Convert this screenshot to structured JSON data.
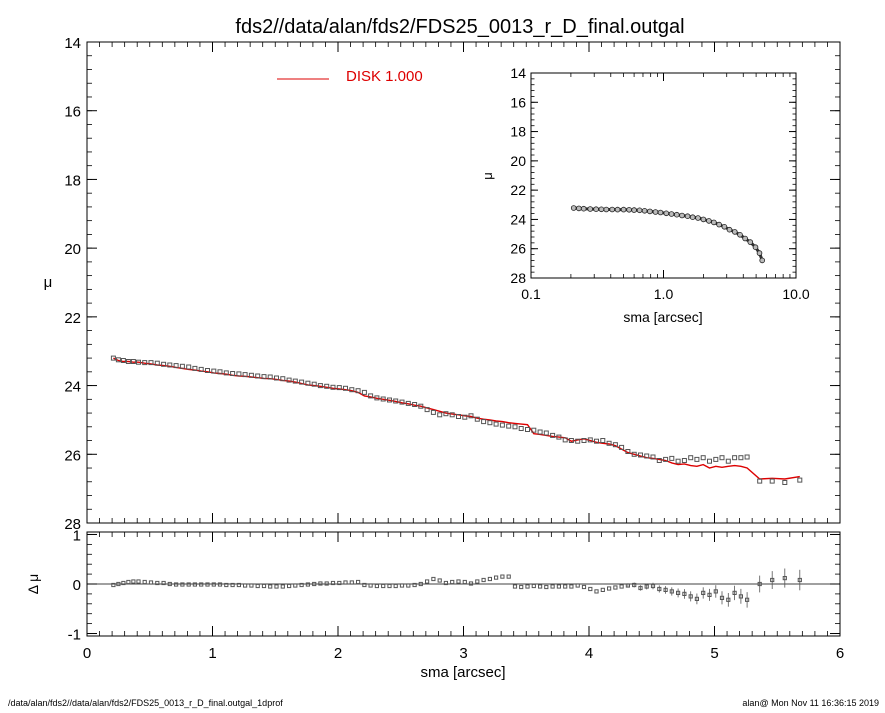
{
  "title": "fds2//data/alan/fds2/FDS25_0013_r_D_final.outgal",
  "footer": {
    "left": "/data/alan/fds2//data/alan/fds2/FDS25_0013_r_D_final.outgal_1dprof",
    "right": "alan@  Mon Nov 11 16:36:15 2019"
  },
  "legend": {
    "label": "DISK  1.000",
    "color": "#dd0000"
  },
  "colors": {
    "model": "#dd0000",
    "points": "#555555",
    "axis": "#000000"
  },
  "chart_data": [
    {
      "id": "main",
      "type": "scatter",
      "ylabel": "μ",
      "xlim": [
        0,
        6
      ],
      "ylim": [
        28,
        14
      ],
      "yticks": [
        14,
        16,
        18,
        20,
        22,
        24,
        26,
        28
      ],
      "x": [
        0.21,
        0.25,
        0.29,
        0.33,
        0.37,
        0.41,
        0.46,
        0.51,
        0.56,
        0.61,
        0.66,
        0.71,
        0.76,
        0.81,
        0.86,
        0.91,
        0.96,
        1.01,
        1.06,
        1.11,
        1.16,
        1.21,
        1.26,
        1.31,
        1.36,
        1.41,
        1.46,
        1.51,
        1.56,
        1.61,
        1.66,
        1.71,
        1.76,
        1.81,
        1.86,
        1.91,
        1.96,
        2.01,
        2.06,
        2.11,
        2.16,
        2.21,
        2.26,
        2.31,
        2.36,
        2.41,
        2.46,
        2.51,
        2.56,
        2.61,
        2.66,
        2.71,
        2.76,
        2.81,
        2.86,
        2.91,
        2.96,
        3.01,
        3.06,
        3.11,
        3.16,
        3.21,
        3.26,
        3.31,
        3.36,
        3.41,
        3.46,
        3.51,
        3.56,
        3.61,
        3.66,
        3.71,
        3.76,
        3.81,
        3.86,
        3.91,
        3.96,
        4.01,
        4.06,
        4.11,
        4.16,
        4.21,
        4.26,
        4.31,
        4.36,
        4.41,
        4.46,
        4.51,
        4.56,
        4.61,
        4.66,
        4.71,
        4.76,
        4.81,
        4.86,
        4.91,
        4.96,
        5.01,
        5.06,
        5.11,
        5.16,
        5.21,
        5.26,
        5.36,
        5.46,
        5.56,
        5.68
      ],
      "y": [
        23.2,
        23.25,
        23.27,
        23.3,
        23.3,
        23.32,
        23.33,
        23.33,
        23.35,
        23.38,
        23.4,
        23.42,
        23.44,
        23.46,
        23.5,
        23.53,
        23.56,
        23.58,
        23.6,
        23.63,
        23.65,
        23.66,
        23.68,
        23.7,
        23.72,
        23.74,
        23.75,
        23.78,
        23.8,
        23.84,
        23.87,
        23.9,
        23.93,
        23.96,
        24.0,
        24.02,
        24.05,
        24.06,
        24.08,
        24.12,
        24.15,
        24.2,
        24.3,
        24.36,
        24.39,
        24.42,
        24.45,
        24.48,
        24.52,
        24.55,
        24.6,
        24.7,
        24.78,
        24.85,
        24.82,
        24.85,
        24.9,
        24.92,
        24.88,
        24.98,
        25.05,
        25.08,
        25.12,
        25.15,
        25.18,
        25.2,
        25.25,
        25.28,
        25.3,
        25.35,
        25.38,
        25.45,
        25.5,
        25.58,
        25.6,
        25.62,
        25.6,
        25.58,
        25.62,
        25.6,
        25.68,
        25.72,
        25.8,
        25.92,
        26.0,
        26.02,
        26.05,
        26.08,
        26.18,
        26.15,
        26.12,
        26.2,
        26.18,
        26.1,
        26.15,
        26.1,
        26.2,
        26.15,
        26.1,
        26.2,
        26.1,
        26.1,
        26.08,
        26.78,
        26.78,
        26.82,
        26.75
      ],
      "model": [
        23.2,
        23.27,
        23.3,
        23.3,
        23.32,
        23.32,
        23.35,
        23.37,
        23.4,
        23.42,
        23.44,
        23.47,
        23.5,
        23.53,
        23.55,
        23.58,
        23.6,
        23.63,
        23.65,
        23.67,
        23.7,
        23.72,
        23.73,
        23.75,
        23.77,
        23.79,
        23.8,
        23.82,
        23.85,
        23.87,
        23.9,
        23.94,
        23.98,
        24.0,
        24.02,
        24.05,
        24.08,
        24.1,
        24.12,
        24.15,
        24.2,
        24.3,
        24.33,
        24.37,
        24.4,
        24.43,
        24.46,
        24.5,
        24.53,
        24.57,
        24.6,
        24.65,
        24.7,
        24.75,
        24.8,
        24.83,
        24.85,
        24.88,
        24.9,
        24.95,
        24.98,
        25.0,
        25.03,
        25.05,
        25.08,
        25.1,
        25.12,
        25.14,
        25.4,
        25.42,
        25.45,
        25.48,
        25.5,
        25.52,
        25.62,
        25.58,
        25.55,
        25.6,
        25.65,
        25.68,
        25.7,
        25.75,
        25.85,
        25.95,
        26.0,
        26.05,
        26.1,
        26.12,
        26.15,
        26.18,
        26.25,
        26.3,
        26.28,
        26.33,
        26.35,
        26.3,
        26.4,
        26.35,
        26.38,
        26.35,
        26.33,
        26.35,
        26.4,
        26.72,
        26.7,
        26.72,
        26.65
      ]
    },
    {
      "id": "residual",
      "type": "scatter",
      "xlabel": "sma [arcsec]",
      "ylabel": "Δ μ",
      "xlim": [
        0,
        6
      ],
      "ylim": [
        -1.05,
        1.05
      ],
      "xticks": [
        0,
        1,
        2,
        3,
        4,
        5,
        6
      ],
      "yticks": [
        1,
        0,
        -1
      ],
      "x": [
        0.21,
        0.25,
        0.29,
        0.33,
        0.37,
        0.41,
        0.46,
        0.51,
        0.56,
        0.61,
        0.66,
        0.71,
        0.76,
        0.81,
        0.86,
        0.91,
        0.96,
        1.01,
        1.06,
        1.11,
        1.16,
        1.21,
        1.26,
        1.31,
        1.36,
        1.41,
        1.46,
        1.51,
        1.56,
        1.61,
        1.66,
        1.71,
        1.76,
        1.81,
        1.86,
        1.91,
        1.96,
        2.01,
        2.06,
        2.11,
        2.16,
        2.21,
        2.26,
        2.31,
        2.36,
        2.41,
        2.46,
        2.51,
        2.56,
        2.61,
        2.66,
        2.71,
        2.76,
        2.81,
        2.86,
        2.91,
        2.96,
        3.01,
        3.06,
        3.11,
        3.16,
        3.21,
        3.26,
        3.31,
        3.36,
        3.41,
        3.46,
        3.51,
        3.56,
        3.61,
        3.66,
        3.71,
        3.76,
        3.81,
        3.86,
        3.91,
        3.96,
        4.01,
        4.06,
        4.11,
        4.16,
        4.21,
        4.26,
        4.31,
        4.36,
        4.41,
        4.46,
        4.51,
        4.56,
        4.61,
        4.66,
        4.71,
        4.76,
        4.81,
        4.86,
        4.91,
        4.96,
        5.01,
        5.06,
        5.11,
        5.16,
        5.21,
        5.26,
        5.36,
        5.46,
        5.56,
        5.68
      ],
      "y": [
        -0.02,
        0.0,
        0.02,
        0.04,
        0.05,
        0.05,
        0.04,
        0.03,
        0.02,
        0.02,
        0.0,
        -0.01,
        -0.01,
        -0.01,
        -0.01,
        -0.01,
        -0.01,
        -0.01,
        -0.01,
        -0.02,
        -0.02,
        -0.02,
        -0.03,
        -0.03,
        -0.04,
        -0.04,
        -0.05,
        -0.05,
        -0.05,
        -0.04,
        -0.03,
        -0.02,
        -0.01,
        0.0,
        0.01,
        0.01,
        0.02,
        0.02,
        0.03,
        0.03,
        0.04,
        -0.02,
        -0.03,
        -0.04,
        -0.04,
        -0.04,
        -0.04,
        -0.03,
        -0.03,
        -0.02,
        0.0,
        0.05,
        0.1,
        0.07,
        0.02,
        0.04,
        0.05,
        0.04,
        0.01,
        0.05,
        0.08,
        0.1,
        0.13,
        0.15,
        0.15,
        -0.05,
        -0.06,
        -0.05,
        -0.04,
        -0.05,
        -0.06,
        -0.05,
        -0.05,
        -0.05,
        -0.05,
        -0.03,
        -0.06,
        -0.1,
        -0.15,
        -0.12,
        -0.09,
        -0.07,
        -0.05,
        -0.03,
        -0.02,
        -0.08,
        -0.05,
        -0.04,
        -0.1,
        -0.12,
        -0.15,
        -0.18,
        -0.2,
        -0.25,
        -0.3,
        -0.18,
        -0.22,
        -0.15,
        -0.28,
        -0.32,
        -0.18,
        -0.25,
        -0.32,
        -0.0,
        0.08,
        0.12,
        0.08
      ]
    },
    {
      "id": "inset",
      "type": "scatter",
      "xscale": "log",
      "xlabel": "sma [arcsec]",
      "ylabel": "μ",
      "xlim": [
        0.1,
        10
      ],
      "ylim": [
        28,
        14
      ],
      "xticks": [
        0.1,
        1.0,
        10.0
      ],
      "xticklabels": [
        "0.1",
        "1.0",
        "10.0"
      ],
      "yticks": [
        14,
        16,
        18,
        20,
        22,
        24,
        26,
        28
      ],
      "x": [
        0.21,
        0.23,
        0.25,
        0.28,
        0.31,
        0.34,
        0.37,
        0.41,
        0.45,
        0.5,
        0.55,
        0.6,
        0.66,
        0.72,
        0.79,
        0.87,
        0.95,
        1.05,
        1.15,
        1.26,
        1.38,
        1.52,
        1.66,
        1.82,
        2.0,
        2.2,
        2.4,
        2.63,
        2.88,
        3.15,
        3.45,
        3.78,
        4.13,
        4.52,
        4.95,
        5.3,
        5.56
      ],
      "y": [
        23.22,
        23.25,
        23.27,
        23.29,
        23.3,
        23.31,
        23.32,
        23.32,
        23.33,
        23.33,
        23.34,
        23.36,
        23.38,
        23.41,
        23.45,
        23.49,
        23.53,
        23.58,
        23.63,
        23.68,
        23.73,
        23.78,
        23.85,
        23.9,
        24.0,
        24.1,
        24.2,
        24.35,
        24.5,
        24.7,
        24.85,
        25.05,
        25.3,
        25.55,
        25.9,
        26.3,
        26.8
      ]
    }
  ]
}
